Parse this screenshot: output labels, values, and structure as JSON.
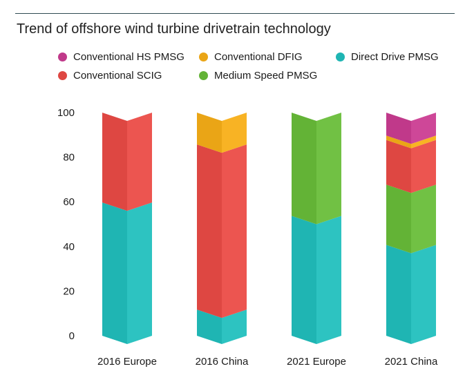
{
  "chart_data": {
    "type": "bar",
    "stacked": true,
    "title": "Trend of offshore wind turbine drivetrain technology",
    "xlabel": "",
    "ylabel": "",
    "ylim": [
      0,
      100
    ],
    "yticks": [
      0,
      20,
      40,
      60,
      80,
      100
    ],
    "categories": [
      "2016 Europe",
      "2016 China",
      "2021 Europe",
      "2021 China"
    ],
    "legend_position": "top",
    "legend_order": [
      "Conventional HS PMSG",
      "Conventional DFIG",
      "Direct Drive PMSG",
      "Conventional SCIG",
      "Medium Speed PMSG"
    ],
    "series": [
      {
        "name": "Direct Drive PMSG",
        "color": "#1fb5b3",
        "values": [
          56,
          8,
          50,
          37
        ]
      },
      {
        "name": "Medium Speed PMSG",
        "color": "#63b336",
        "values": [
          0,
          0,
          50,
          27
        ]
      },
      {
        "name": "Conventional SCIG",
        "color": "#de4742",
        "values": [
          44,
          74,
          0,
          20
        ]
      },
      {
        "name": "Conventional DFIG",
        "color": "#eaa516",
        "values": [
          0,
          18,
          0,
          2
        ]
      },
      {
        "name": "Conventional HS PMSG",
        "color": "#c0398a",
        "values": [
          0,
          0,
          0,
          14
        ]
      }
    ]
  }
}
